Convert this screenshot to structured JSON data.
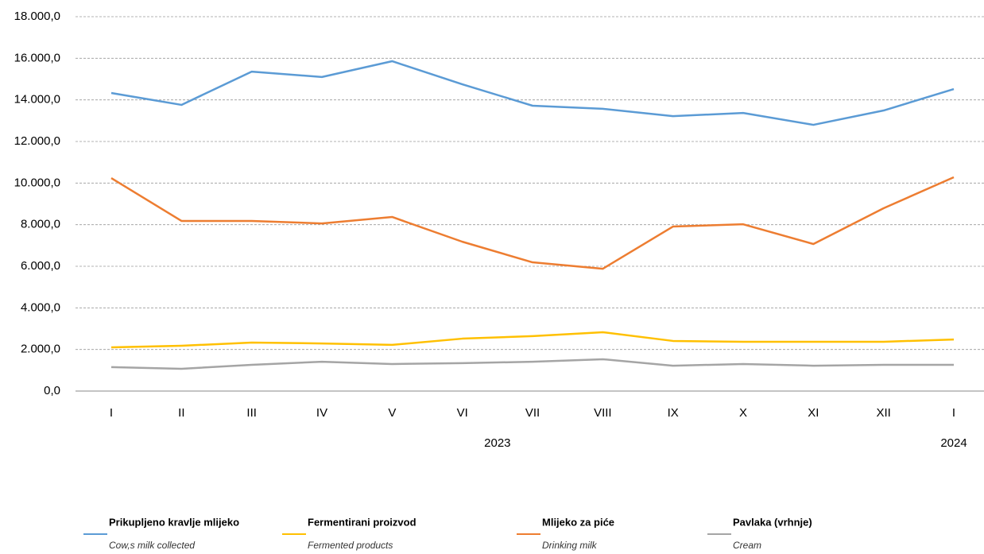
{
  "chart_data": {
    "type": "line",
    "categories": [
      "I",
      "II",
      "III",
      "IV",
      "V",
      "VI",
      "VII",
      "VIII",
      "IX",
      "X",
      "XI",
      "XII",
      "I"
    ],
    "year_groups": [
      {
        "label": "2023",
        "span": 12
      },
      {
        "label": "2024",
        "span": 1
      }
    ],
    "ylim": [
      0,
      18000
    ],
    "yticks": [
      {
        "value": 0,
        "label": "0,0"
      },
      {
        "value": 2000,
        "label": "2.000,0"
      },
      {
        "value": 4000,
        "label": "4.000,0"
      },
      {
        "value": 6000,
        "label": "6.000,0"
      },
      {
        "value": 8000,
        "label": "8.000,0"
      },
      {
        "value": 10000,
        "label": "10.000,0"
      },
      {
        "value": 12000,
        "label": "12.000,0"
      },
      {
        "value": 14000,
        "label": "14.000,0"
      },
      {
        "value": 16000,
        "label": "16.000,0"
      },
      {
        "value": 18000,
        "label": "18.000,0"
      }
    ],
    "grid": true,
    "series": [
      {
        "name": "Prikupljeno kravlje mlijeko",
        "name_en": "Cow,s milk collected",
        "color": "#5b9bd5",
        "values": [
          14330,
          13760,
          15360,
          15100,
          15860,
          14750,
          13720,
          13570,
          13220,
          13370,
          12800,
          13490,
          14520
        ]
      },
      {
        "name": "Fermentirani proizvod",
        "name_en": "Fermented products",
        "color": "#ffc000",
        "values": [
          2100,
          2180,
          2330,
          2290,
          2220,
          2520,
          2640,
          2830,
          2410,
          2370,
          2370,
          2370,
          2480
        ]
      },
      {
        "name": "Mlijeko za piće",
        "name_en": "Drinking milk",
        "color": "#ed7d31",
        "values": [
          10240,
          8180,
          8180,
          8060,
          8370,
          7180,
          6190,
          5880,
          7910,
          8020,
          7070,
          8790,
          10280
        ]
      },
      {
        "name": "Pavlaka (vrhnje)",
        "name_en": "Cream",
        "color": "#a5a5a5",
        "values": [
          1150,
          1070,
          1260,
          1410,
          1300,
          1340,
          1410,
          1530,
          1220,
          1300,
          1220,
          1260,
          1260
        ]
      }
    ]
  }
}
